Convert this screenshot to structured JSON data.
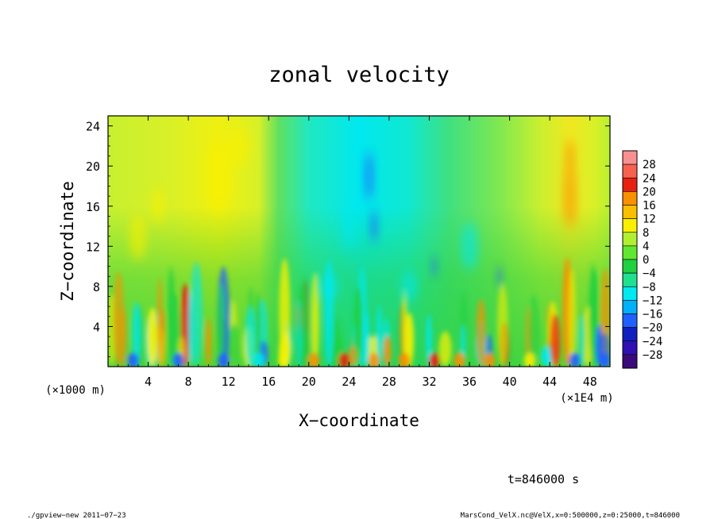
{
  "chart_data": {
    "type": "heatmap",
    "title": "zonal velocity",
    "xlabel": "X−coordinate",
    "ylabel": "Z−coordinate",
    "x_unit_label": "(×1E4 m)",
    "y_unit_label": "(×1000 m)",
    "x_ticks": [
      4,
      8,
      12,
      16,
      20,
      24,
      28,
      32,
      36,
      40,
      44,
      48
    ],
    "y_ticks": [
      4,
      8,
      12,
      16,
      20,
      24
    ],
    "xlim": [
      0,
      50
    ],
    "ylim": [
      0,
      25
    ],
    "colorbar_levels": [
      28,
      24,
      20,
      16,
      12,
      8,
      4,
      0,
      -4,
      -8,
      -12,
      -16,
      -20,
      -24,
      -28
    ],
    "colorbar_range": [
      -32,
      32
    ],
    "colors": {
      "dark_purple": "#3a0a7a",
      "dark_blue": "#1020c0",
      "blue": "#2060ff",
      "cyan": "#00e8f0",
      "green": "#20d040",
      "yellow_green": "#b0f030",
      "yellow": "#f8f000",
      "orange": "#f89000",
      "red": "#e82010",
      "pink": "#f89090"
    },
    "time_label": "t=846000 s"
  },
  "footer": {
    "left": "./gpview−new  2011−07−23",
    "right": "MarsCond_VelX.nc@VelX,x=0:500000,z=0:25000,t=846000"
  }
}
